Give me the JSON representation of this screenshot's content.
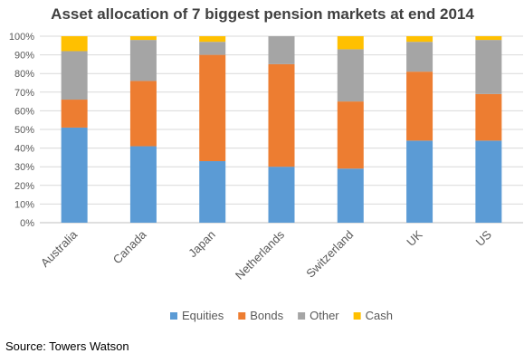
{
  "chart_data": {
    "type": "bar",
    "stacked": true,
    "title": "Asset allocation of 7 biggest pension markets at end 2014",
    "categories": [
      "Australia",
      "Canada",
      "Japan",
      "Netherlands",
      "Switzerland",
      "UK",
      "US"
    ],
    "series": [
      {
        "name": "Equities",
        "color": "#5B9BD5",
        "values": [
          51,
          41,
          33,
          30,
          29,
          44,
          44
        ]
      },
      {
        "name": "Bonds",
        "color": "#ED7D31",
        "values": [
          15,
          35,
          57,
          55,
          36,
          37,
          25
        ]
      },
      {
        "name": "Other",
        "color": "#A5A5A5",
        "values": [
          26,
          22,
          7,
          15,
          28,
          16,
          29
        ]
      },
      {
        "name": "Cash",
        "color": "#FFC000",
        "values": [
          8,
          2,
          3,
          0,
          7,
          3,
          2
        ]
      }
    ],
    "yticks": [
      "0%",
      "10%",
      "20%",
      "30%",
      "40%",
      "50%",
      "60%",
      "70%",
      "80%",
      "90%",
      "100%"
    ],
    "ylim": [
      0,
      100
    ],
    "grid": true,
    "legend_position": "bottom",
    "xlabel": "",
    "ylabel": ""
  },
  "footer": {
    "source": "Source: Towers Watson"
  }
}
